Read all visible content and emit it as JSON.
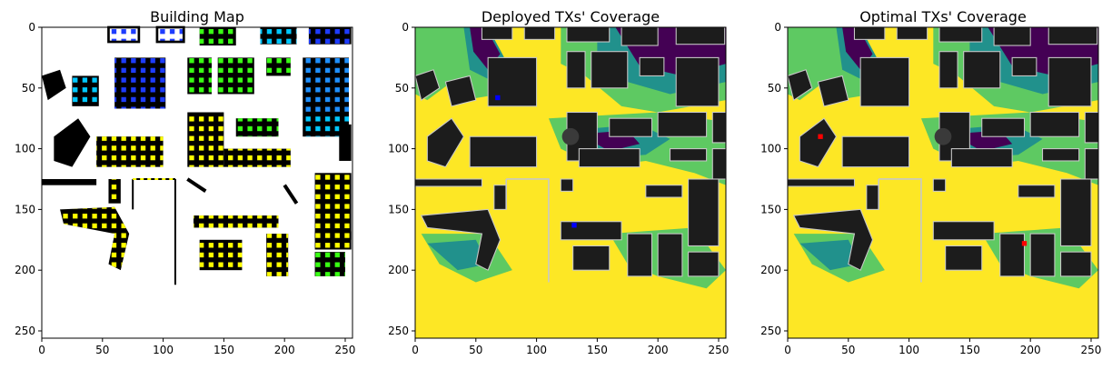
{
  "chart_data": [
    {
      "type": "heatmap",
      "title": "Building Map",
      "xlabel": "",
      "ylabel": "",
      "xlim": [
        0,
        256
      ],
      "ylim": [
        256,
        0
      ],
      "x_ticks": [
        0,
        50,
        100,
        150,
        200,
        250
      ],
      "y_ticks": [
        0,
        50,
        100,
        150,
        200,
        250
      ],
      "content": "building footprints (black) on white; candidate sensor points colored by group",
      "colors": {
        "background": "#ffffff",
        "building": "#000000",
        "groups": [
          "#0a1fff",
          "#1e90ff",
          "#00c8ff",
          "#39ff14",
          "#ffff00"
        ]
      }
    },
    {
      "type": "heatmap",
      "title": "Deployed TXs' Coverage",
      "xlabel": "",
      "ylabel": "",
      "xlim": [
        0,
        256
      ],
      "ylim": [
        256,
        0
      ],
      "x_ticks": [
        0,
        50,
        100,
        150,
        200,
        250
      ],
      "y_ticks": [
        0,
        50,
        100,
        150,
        200,
        250
      ],
      "colormap": [
        "#440154",
        "#21918c",
        "#5ec962",
        "#fde725"
      ],
      "transmitters": [
        {
          "x": 68,
          "y": 58,
          "color": "#0000ff"
        },
        {
          "x": 131,
          "y": 163,
          "color": "#0000ff"
        }
      ]
    },
    {
      "type": "heatmap",
      "title": "Optimal TXs' Coverage",
      "xlabel": "",
      "ylabel": "",
      "xlim": [
        0,
        256
      ],
      "ylim": [
        256,
        0
      ],
      "x_ticks": [
        0,
        50,
        100,
        150,
        200,
        250
      ],
      "y_ticks": [
        0,
        50,
        100,
        150,
        200,
        250
      ],
      "colormap": [
        "#440154",
        "#21918c",
        "#5ec962",
        "#fde725"
      ],
      "transmitters": [
        {
          "x": 27,
          "y": 90,
          "color": "#ff0000"
        },
        {
          "x": 195,
          "y": 178,
          "color": "#ff0000"
        }
      ]
    }
  ]
}
